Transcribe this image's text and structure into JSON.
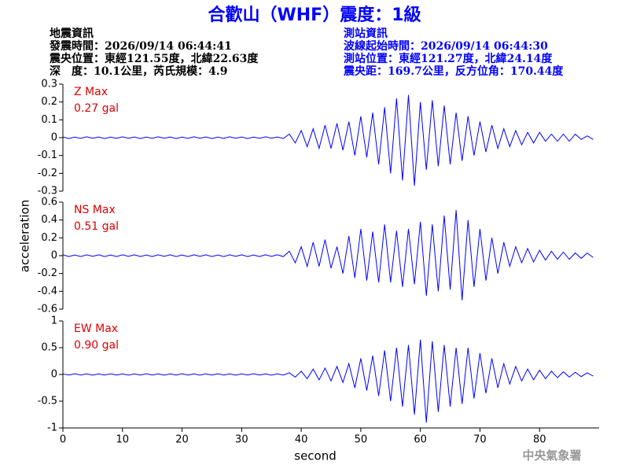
{
  "header": {
    "left": [
      "地震資訊",
      "發震時間：2026/09/14 06:44:41",
      "震央位置：東經121.55度，北緯22.63度",
      "深　度：10.1公里，芮氏規模：4.9"
    ],
    "right": [
      "測站資訊",
      "波線起始時間：2026/09/14 06:44:30",
      "測站位置：東經121.27度，北緯24.14度",
      "震央距：169.7公里，反方位角：170.44度"
    ]
  },
  "chart_data": {
    "type": "line",
    "title": "合歡山（WHF）震度：1級",
    "xlabel": "second",
    "ylabel": "acceleration",
    "watermark": "中央氣象署",
    "xlim": [
      0,
      90
    ],
    "xticks": [
      0,
      10,
      20,
      30,
      40,
      50,
      60,
      70,
      80
    ],
    "x": [
      0,
      1,
      2,
      3,
      4,
      5,
      6,
      7,
      8,
      9,
      10,
      11,
      12,
      13,
      14,
      15,
      16,
      17,
      18,
      19,
      20,
      21,
      22,
      23,
      24,
      25,
      26,
      27,
      28,
      29,
      30,
      31,
      32,
      33,
      34,
      35,
      36,
      37,
      38,
      39,
      40,
      41,
      42,
      43,
      44,
      45,
      46,
      47,
      48,
      49,
      50,
      51,
      52,
      53,
      54,
      55,
      56,
      57,
      58,
      59,
      60,
      61,
      62,
      63,
      64,
      65,
      66,
      67,
      68,
      69,
      70,
      71,
      72,
      73,
      74,
      75,
      76,
      77,
      78,
      79,
      80,
      81,
      82,
      83,
      84,
      85,
      86,
      87,
      88,
      89
    ],
    "panels": [
      {
        "name": "Z Max",
        "max_label": "0.27 gal",
        "color": "#0000ff",
        "label_color": "#e00000",
        "ylim": [
          -0.3,
          0.3
        ],
        "yticks": [
          -0.3,
          -0.2,
          -0.1,
          0,
          0.1,
          0.2,
          0.3
        ],
        "values": [
          0.004,
          -0.005,
          0.003,
          -0.004,
          0.005,
          -0.003,
          0.004,
          -0.005,
          0.003,
          -0.004,
          0.005,
          -0.003,
          0.004,
          -0.005,
          0.003,
          -0.004,
          0.005,
          -0.003,
          0.004,
          -0.005,
          0.003,
          -0.004,
          0.005,
          -0.003,
          0.004,
          -0.005,
          0.003,
          -0.004,
          0.005,
          -0.003,
          0.004,
          -0.005,
          0.003,
          -0.004,
          0.005,
          -0.003,
          0.004,
          -0.005,
          0.02,
          -0.03,
          0.04,
          -0.05,
          0.05,
          -0.06,
          0.07,
          -0.06,
          0.08,
          -0.07,
          0.09,
          -0.1,
          0.12,
          -0.11,
          0.14,
          -0.15,
          0.17,
          -0.2,
          0.22,
          -0.24,
          0.24,
          -0.27,
          0.2,
          -0.18,
          0.21,
          -0.16,
          0.18,
          -0.15,
          0.14,
          -0.13,
          0.12,
          -0.1,
          0.09,
          -0.08,
          0.07,
          -0.06,
          0.05,
          -0.05,
          0.04,
          -0.04,
          0.03,
          -0.03,
          0.03,
          -0.02,
          0.02,
          -0.02,
          0.02,
          -0.02,
          0.02,
          -0.01,
          0.01,
          -0.01
        ]
      },
      {
        "name": "NS Max",
        "max_label": "0.51 gal",
        "color": "#0000ff",
        "label_color": "#e00000",
        "ylim": [
          -0.6,
          0.6
        ],
        "yticks": [
          -0.6,
          -0.4,
          -0.2,
          0,
          0.2,
          0.4,
          0.6
        ],
        "values": [
          0.01,
          -0.01,
          0.008,
          -0.01,
          0.01,
          -0.008,
          0.01,
          -0.01,
          0.008,
          -0.01,
          0.01,
          -0.008,
          0.01,
          -0.01,
          0.008,
          -0.01,
          0.01,
          -0.008,
          0.01,
          -0.01,
          0.008,
          -0.01,
          0.01,
          -0.008,
          0.01,
          -0.01,
          0.008,
          -0.01,
          0.01,
          -0.008,
          0.01,
          -0.01,
          0.008,
          -0.01,
          0.01,
          -0.008,
          0.01,
          -0.01,
          0.05,
          -0.08,
          0.1,
          -0.12,
          0.15,
          -0.12,
          0.18,
          -0.14,
          0.1,
          -0.2,
          0.22,
          -0.25,
          0.3,
          -0.28,
          0.27,
          -0.3,
          0.35,
          -0.3,
          0.28,
          -0.35,
          0.3,
          -0.32,
          0.38,
          -0.45,
          0.35,
          -0.4,
          0.45,
          -0.38,
          0.51,
          -0.5,
          0.4,
          -0.35,
          0.3,
          -0.28,
          0.2,
          -0.2,
          0.15,
          -0.12,
          0.1,
          -0.08,
          0.08,
          -0.07,
          0.06,
          -0.05,
          0.05,
          -0.04,
          0.04,
          -0.04,
          0.03,
          -0.03,
          0.03,
          -0.02
        ]
      },
      {
        "name": "EW Max",
        "max_label": "0.90 gal",
        "color": "#0000ff",
        "label_color": "#e00000",
        "ylim": [
          -1,
          1
        ],
        "yticks": [
          -1,
          -0.5,
          0,
          0.5,
          1
        ],
        "values": [
          0.01,
          -0.01,
          0.012,
          -0.01,
          0.01,
          -0.012,
          0.01,
          -0.01,
          0.012,
          -0.01,
          0.01,
          -0.012,
          0.01,
          -0.01,
          0.012,
          -0.01,
          0.01,
          -0.012,
          0.01,
          -0.01,
          0.012,
          -0.01,
          0.01,
          -0.012,
          0.01,
          -0.01,
          0.012,
          -0.01,
          0.01,
          -0.012,
          0.01,
          -0.01,
          0.012,
          -0.01,
          0.01,
          -0.012,
          0.01,
          -0.01,
          0.03,
          -0.05,
          0.06,
          -0.08,
          0.1,
          -0.1,
          0.12,
          -0.12,
          0.15,
          -0.15,
          0.2,
          -0.25,
          0.3,
          -0.3,
          0.35,
          -0.4,
          0.45,
          -0.5,
          0.5,
          -0.6,
          0.55,
          -0.75,
          0.65,
          -0.9,
          0.62,
          -0.7,
          0.55,
          -0.6,
          0.5,
          -0.55,
          0.5,
          -0.45,
          0.4,
          -0.35,
          0.3,
          -0.25,
          0.2,
          -0.18,
          0.15,
          -0.12,
          0.1,
          -0.1,
          0.08,
          -0.08,
          0.06,
          -0.06,
          0.05,
          -0.05,
          0.04,
          -0.04,
          0.03,
          -0.03
        ]
      }
    ]
  }
}
